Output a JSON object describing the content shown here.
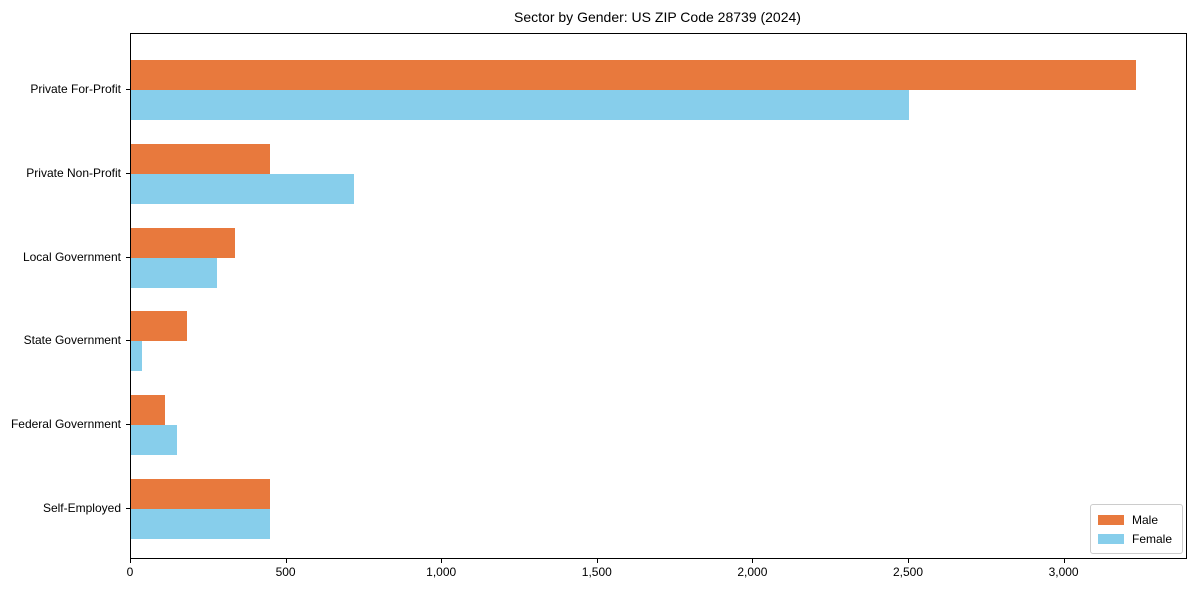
{
  "chart_data": {
    "type": "bar",
    "orientation": "horizontal",
    "title": "Sector by Gender: US ZIP Code 28739 (2024)",
    "categories": [
      "Private For-Profit",
      "Private Non-Profit",
      "Local Government",
      "State Government",
      "Federal Government",
      "Self-Employed"
    ],
    "series": [
      {
        "name": "Male",
        "color": "#e8793d",
        "values": [
          3230,
          445,
          335,
          180,
          110,
          448
        ]
      },
      {
        "name": "Female",
        "color": "#87ceeb",
        "values": [
          2500,
          715,
          275,
          35,
          148,
          448
        ]
      }
    ],
    "xlim": [
      0,
      3390
    ],
    "x_tick_values": [
      0,
      500,
      1000,
      1500,
      2000,
      2500,
      3000
    ],
    "x_tick_labels": [
      "0",
      "500",
      "1,000",
      "1,500",
      "2,000",
      "2,500",
      "3,000"
    ],
    "xlabel": "",
    "ylabel": "",
    "grid": false,
    "legend_position": "lower right",
    "colors": {
      "spine": "#000000",
      "text": "#000000",
      "legend_border": "#cccccc"
    }
  }
}
